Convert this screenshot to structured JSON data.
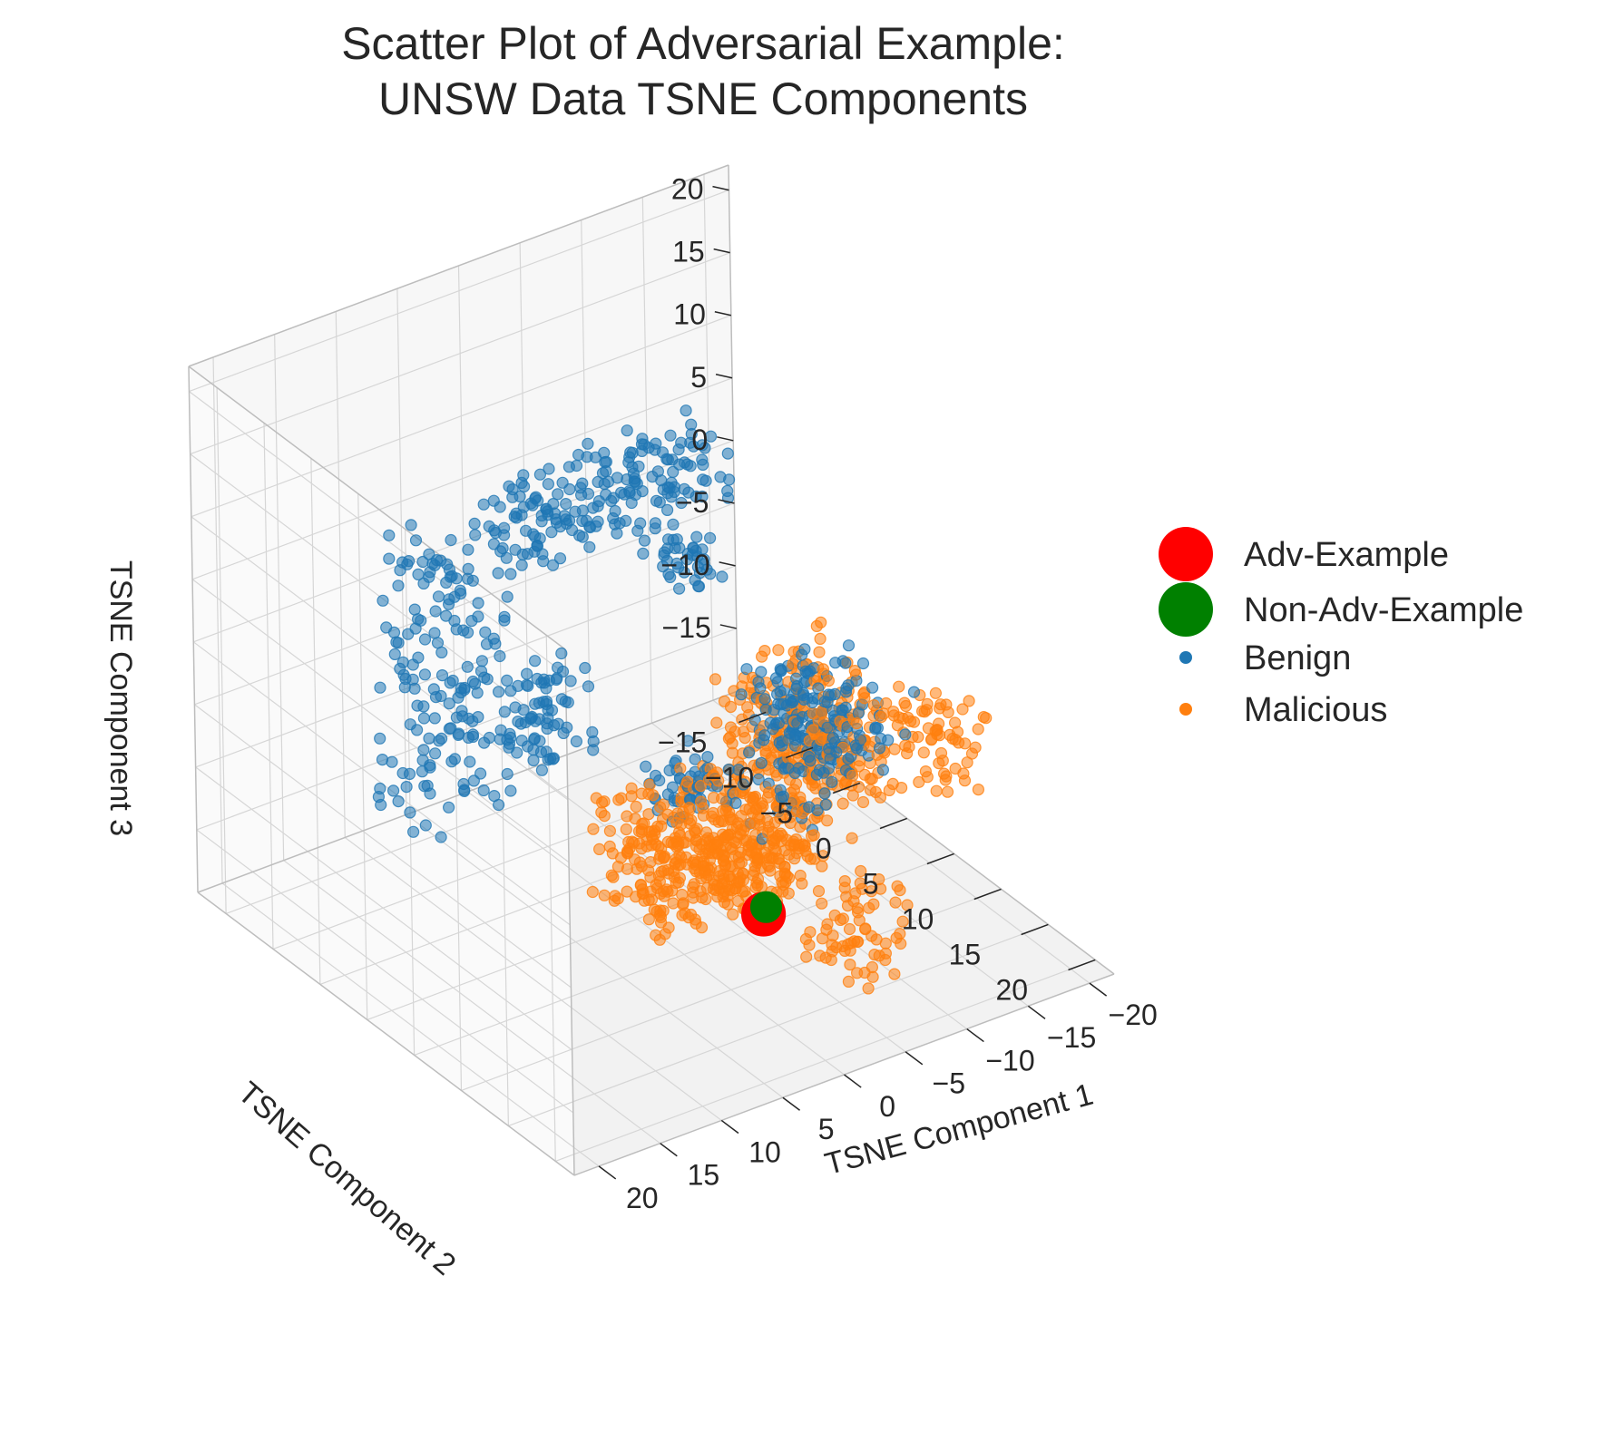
{
  "chart_data": {
    "type": "scatter3d",
    "title": [
      "Scatter Plot of Adversarial Example:",
      "UNSW Data TSNE Components"
    ],
    "xlabel": "TSNE Component 1",
    "ylabel": "TSNE Component 2",
    "zlabel": "TSNE Component 3",
    "xlim": [
      -22,
      22
    ],
    "ylim": [
      -18,
      22
    ],
    "zlim": [
      -20,
      22
    ],
    "x_ticks": [
      20,
      15,
      10,
      5,
      0,
      -5,
      -10,
      -15,
      -20
    ],
    "y_ticks": [
      -15,
      -10,
      -5,
      0,
      5,
      10,
      15,
      20
    ],
    "z_ticks": [
      20,
      15,
      10,
      5,
      0,
      -5,
      -10,
      -15
    ],
    "x_tick_labels": [
      "20",
      "15",
      "10",
      "5",
      "0",
      "−5",
      "−10",
      "−15",
      "−20"
    ],
    "y_tick_labels": [
      "−15",
      "−10",
      "−5",
      "0",
      "5",
      "10",
      "15",
      "20"
    ],
    "z_tick_labels": [
      "20",
      "15",
      "10",
      "5",
      "0",
      "−5",
      "−10",
      "−15"
    ],
    "grid": true,
    "legend_position": "right",
    "series": [
      {
        "name": "Benign",
        "color": "#1f77b4",
        "alpha": 0.55,
        "clusters": [
          {
            "x": [
              -6,
              12
            ],
            "y": [
              -2,
              4
            ],
            "z": [
              13,
              18
            ],
            "n": 190
          },
          {
            "x": [
              6,
              14
            ],
            "y": [
              -10,
              -4
            ],
            "z": [
              -12,
              10
            ],
            "n": 170
          },
          {
            "x": [
              4,
              10
            ],
            "y": [
              -2,
              2
            ],
            "z": [
              -4,
              2
            ],
            "n": 70
          },
          {
            "x": [
              0,
              4
            ],
            "y": [
              6,
              10
            ],
            "z": [
              -6,
              -2
            ],
            "n": 50
          },
          {
            "x": [
              -6,
              -2
            ],
            "y": [
              -2,
              2
            ],
            "z": [
              6,
              9
            ],
            "n": 40
          },
          {
            "x": [
              -10,
              -4
            ],
            "y": [
              6,
              12
            ],
            "z": [
              -4,
              2
            ],
            "n": 110
          },
          {
            "x": [
              -14,
              -8
            ],
            "y": [
              4,
              12
            ],
            "z": [
              -6,
              0
            ],
            "n": 60
          },
          {
            "x": [
              -6,
              2
            ],
            "y": [
              10,
              16
            ],
            "z": [
              -6,
              0
            ],
            "n": 40
          }
        ]
      },
      {
        "name": "Malicious",
        "color": "#ff7f0e",
        "alpha": 0.55,
        "clusters": [
          {
            "x": [
              -2,
              10
            ],
            "y": [
              8,
              16
            ],
            "z": [
              -10,
              -2
            ],
            "n": 380
          },
          {
            "x": [
              -2,
              6
            ],
            "y": [
              14,
              18
            ],
            "z": [
              -8,
              -4
            ],
            "n": 80
          },
          {
            "x": [
              -14,
              -4
            ],
            "y": [
              2,
              12
            ],
            "z": [
              -10,
              0
            ],
            "n": 320
          },
          {
            "x": [
              -20,
              -16
            ],
            "y": [
              6,
              12
            ],
            "z": [
              -10,
              -4
            ],
            "n": 60
          },
          {
            "x": [
              -8,
              -2
            ],
            "y": [
              14,
              20
            ],
            "z": [
              -16,
              -10
            ],
            "n": 70
          }
        ]
      },
      {
        "name": "Adv-Example",
        "color": "#ff0000",
        "points": [
          {
            "x": 3.6,
            "y": 18.4,
            "z": -7.9
          }
        ]
      },
      {
        "name": "Non-Adv-Example",
        "color": "#008000",
        "points": [
          {
            "x": 3.3,
            "y": 18.3,
            "z": -7.5
          }
        ]
      }
    ],
    "legend": [
      {
        "label": "Adv-Example",
        "color": "#ff0000",
        "marker": "large-circle"
      },
      {
        "label": "Non-Adv-Example",
        "color": "#008000",
        "marker": "large-circle"
      },
      {
        "label": "Benign",
        "color": "#1f77b4",
        "marker": "small-circle"
      },
      {
        "label": "Malicious",
        "color": "#ff7f0e",
        "marker": "small-circle"
      }
    ]
  }
}
